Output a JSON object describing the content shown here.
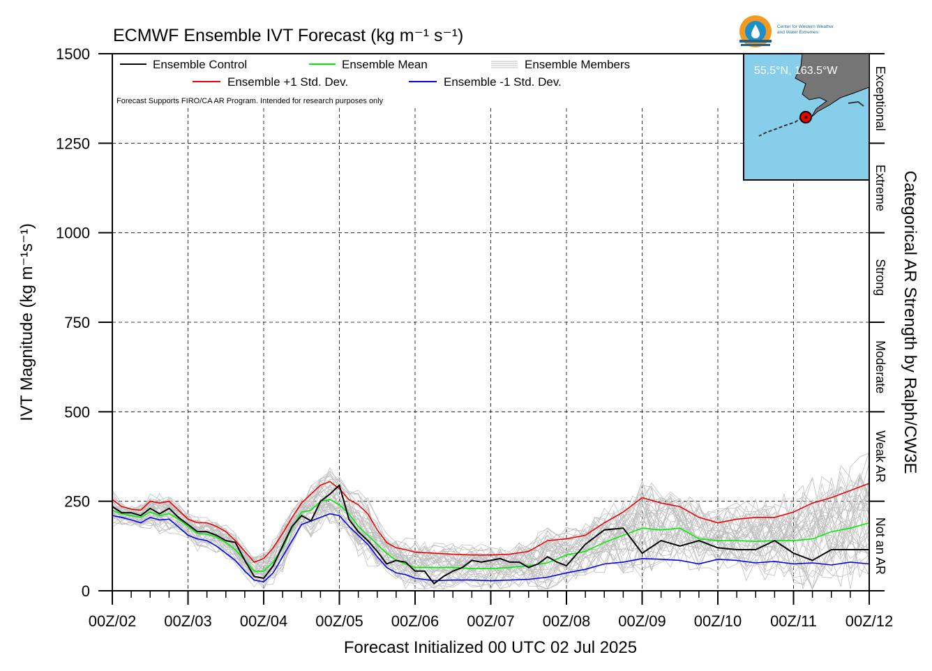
{
  "chart_data": {
    "type": "line",
    "title": "ECMWF Ensemble IVT Forecast (kg m⁻¹ s⁻¹)",
    "xlabel": "Forecast Initialized 00 UTC 02 Jul 2025",
    "ylabel": "IVT Magnitude (kg m⁻¹s⁻¹)",
    "right_label": "Categorical AR Strength by Ralph/CW3E",
    "note": "Forecast Supports FIRO/CA AR Program. Intended for research purposes only",
    "ylim": [
      0,
      1500
    ],
    "yticks": [
      0,
      250,
      500,
      750,
      1000,
      1250,
      1500
    ],
    "xlim": [
      0,
      240
    ],
    "xtick_hours": [
      0,
      24,
      48,
      72,
      96,
      120,
      144,
      168,
      192,
      216,
      240
    ],
    "xtick_labels": [
      "00Z/02",
      "00Z/03",
      "00Z/04",
      "00Z/05",
      "00Z/06",
      "00Z/07",
      "00Z/08",
      "00Z/09",
      "00Z/10",
      "00Z/11",
      "00Z/12"
    ],
    "x_unit": "forecast hours",
    "grid": true,
    "categories_right": [
      {
        "label": "Not an AR",
        "min": 0,
        "max": 250
      },
      {
        "label": "Weak AR",
        "min": 250,
        "max": 500
      },
      {
        "label": "Moderate",
        "min": 500,
        "max": 750
      },
      {
        "label": "Strong",
        "min": 750,
        "max": 1000
      },
      {
        "label": "Extreme",
        "min": 1000,
        "max": 1250
      },
      {
        "label": "Exceptional",
        "min": 1250,
        "max": 1500
      }
    ],
    "legend": {
      "control": "Ensemble Control",
      "mean": "Ensemble Mean",
      "members": "Ensemble Members",
      "plus": "Ensemble +1 Std. Dev.",
      "minus": "Ensemble -1 Std. Dev."
    },
    "series": [
      {
        "name": "Ensemble Control",
        "color": "#000000",
        "x": [
          0,
          3,
          6,
          9,
          12,
          15,
          18,
          21,
          24,
          27,
          30,
          33,
          36,
          39,
          42,
          45,
          48,
          51,
          54,
          57,
          60,
          63,
          66,
          69,
          72,
          75,
          78,
          81,
          84,
          87,
          90,
          93,
          96,
          99,
          102,
          105,
          108,
          111,
          114,
          117,
          120,
          123,
          126,
          129,
          132,
          135,
          138,
          141,
          144,
          150,
          156,
          162,
          168,
          174,
          180,
          186,
          192,
          198,
          204,
          210,
          216,
          222,
          228,
          234,
          240
        ],
        "values": [
          235,
          218,
          218,
          210,
          230,
          215,
          230,
          205,
          185,
          165,
          165,
          155,
          140,
          135,
          85,
          40,
          35,
          70,
          125,
          180,
          210,
          195,
          250,
          270,
          295,
          200,
          165,
          140,
          110,
          75,
          85,
          80,
          55,
          55,
          20,
          40,
          55,
          65,
          85,
          80,
          85,
          90,
          80,
          80,
          65,
          75,
          95,
          80,
          70,
          130,
          170,
          175,
          105,
          140,
          125,
          140,
          120,
          115,
          115,
          140,
          105,
          85,
          115,
          115,
          115
        ]
      },
      {
        "name": "Ensemble Mean",
        "color": "#00ee00",
        "x": [
          0,
          3,
          6,
          9,
          12,
          15,
          18,
          21,
          24,
          27,
          30,
          33,
          36,
          39,
          42,
          45,
          48,
          51,
          54,
          57,
          60,
          63,
          66,
          69,
          72,
          75,
          78,
          81,
          84,
          87,
          90,
          93,
          96,
          102,
          108,
          114,
          120,
          126,
          132,
          138,
          144,
          150,
          156,
          162,
          168,
          174,
          180,
          186,
          192,
          198,
          204,
          210,
          216,
          222,
          228,
          234,
          240
        ],
        "values": [
          225,
          215,
          210,
          205,
          220,
          210,
          215,
          200,
          180,
          160,
          158,
          150,
          135,
          115,
          85,
          55,
          55,
          80,
          120,
          175,
          220,
          225,
          250,
          255,
          240,
          215,
          180,
          155,
          130,
          105,
          85,
          75,
          65,
          65,
          65,
          62,
          62,
          65,
          70,
          78,
          100,
          110,
          135,
          155,
          175,
          170,
          175,
          145,
          140,
          140,
          138,
          140,
          140,
          145,
          165,
          175,
          190
        ]
      },
      {
        "name": "Ensemble +1 Std. Dev.",
        "color": "#ee0000",
        "x": [
          0,
          3,
          6,
          9,
          12,
          15,
          18,
          21,
          24,
          27,
          30,
          33,
          36,
          39,
          42,
          45,
          48,
          51,
          54,
          57,
          60,
          63,
          66,
          69,
          72,
          75,
          78,
          81,
          84,
          87,
          90,
          93,
          96,
          102,
          108,
          114,
          120,
          126,
          132,
          138,
          144,
          150,
          156,
          162,
          168,
          174,
          180,
          186,
          192,
          198,
          204,
          210,
          216,
          222,
          228,
          234,
          240
        ],
        "values": [
          255,
          235,
          228,
          225,
          250,
          245,
          250,
          225,
          200,
          190,
          190,
          180,
          165,
          140,
          110,
          80,
          90,
          120,
          160,
          205,
          245,
          270,
          295,
          305,
          285,
          255,
          240,
          215,
          170,
          135,
          120,
          115,
          108,
          105,
          102,
          100,
          100,
          102,
          110,
          140,
          145,
          155,
          190,
          220,
          260,
          245,
          235,
          205,
          190,
          200,
          205,
          205,
          220,
          245,
          260,
          280,
          300
        ]
      },
      {
        "name": "Ensemble -1 Std. Dev.",
        "color": "#0000ee",
        "x": [
          0,
          3,
          6,
          9,
          12,
          15,
          18,
          21,
          24,
          27,
          30,
          33,
          36,
          39,
          42,
          45,
          48,
          51,
          54,
          57,
          60,
          63,
          66,
          69,
          72,
          75,
          78,
          81,
          84,
          87,
          90,
          93,
          96,
          102,
          108,
          114,
          120,
          126,
          132,
          138,
          144,
          150,
          156,
          162,
          168,
          174,
          180,
          186,
          192,
          198,
          204,
          210,
          216,
          222,
          228,
          234,
          240
        ],
        "values": [
          210,
          205,
          198,
          190,
          205,
          198,
          200,
          178,
          155,
          145,
          140,
          125,
          105,
          85,
          55,
          30,
          25,
          50,
          95,
          140,
          185,
          195,
          205,
          215,
          210,
          180,
          155,
          130,
          95,
          65,
          50,
          45,
          35,
          28,
          30,
          30,
          28,
          30,
          32,
          38,
          50,
          60,
          75,
          80,
          90,
          88,
          85,
          75,
          88,
          85,
          78,
          82,
          75,
          78,
          72,
          80,
          75
        ]
      }
    ],
    "members": {
      "count": 40,
      "color": "#bfbfbf"
    },
    "inset_map": {
      "label": "55.5°N, 163.5°W",
      "point": {
        "lat": 55.5,
        "lon": -163.5
      }
    }
  },
  "logo": {
    "org": "Center for Western Weather",
    "org2": "and Water Extremes"
  }
}
